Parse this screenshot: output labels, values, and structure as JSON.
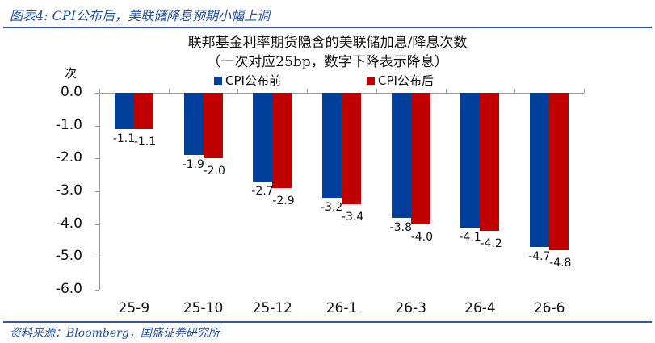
{
  "figure": {
    "caption": "图表4:  CPI公布后，美联储降息预期小幅上调",
    "source": "资料来源：Bloomberg，国盛证券研究所"
  },
  "colors": {
    "before": "#003f9a",
    "after": "#c00000",
    "accent": "#2a5aa8"
  },
  "chart_data": {
    "type": "bar",
    "title": "联邦基金利率期货隐含的美联储加息/降息次数",
    "subtitle": "（一次对应25bp，数字下降表示降息）",
    "ylabel": "次",
    "xlabel": "",
    "ylim": [
      -6.0,
      0.0
    ],
    "yticks": [
      "0.0",
      "-1.0",
      "-2.0",
      "-3.0",
      "-4.0",
      "-5.0",
      "-6.0"
    ],
    "categories": [
      "25-9",
      "25-10",
      "25-12",
      "26-1",
      "26-3",
      "26-4",
      "26-6"
    ],
    "series": [
      {
        "name": "CPI公布前",
        "values": [
          -1.1,
          -1.9,
          -2.7,
          -3.2,
          -3.8,
          -4.1,
          -4.7
        ]
      },
      {
        "name": "CPI公布后",
        "values": [
          -1.1,
          -2.0,
          -2.9,
          -3.4,
          -4.0,
          -4.2,
          -4.8
        ]
      }
    ],
    "legend_position": "top",
    "grid": false
  }
}
